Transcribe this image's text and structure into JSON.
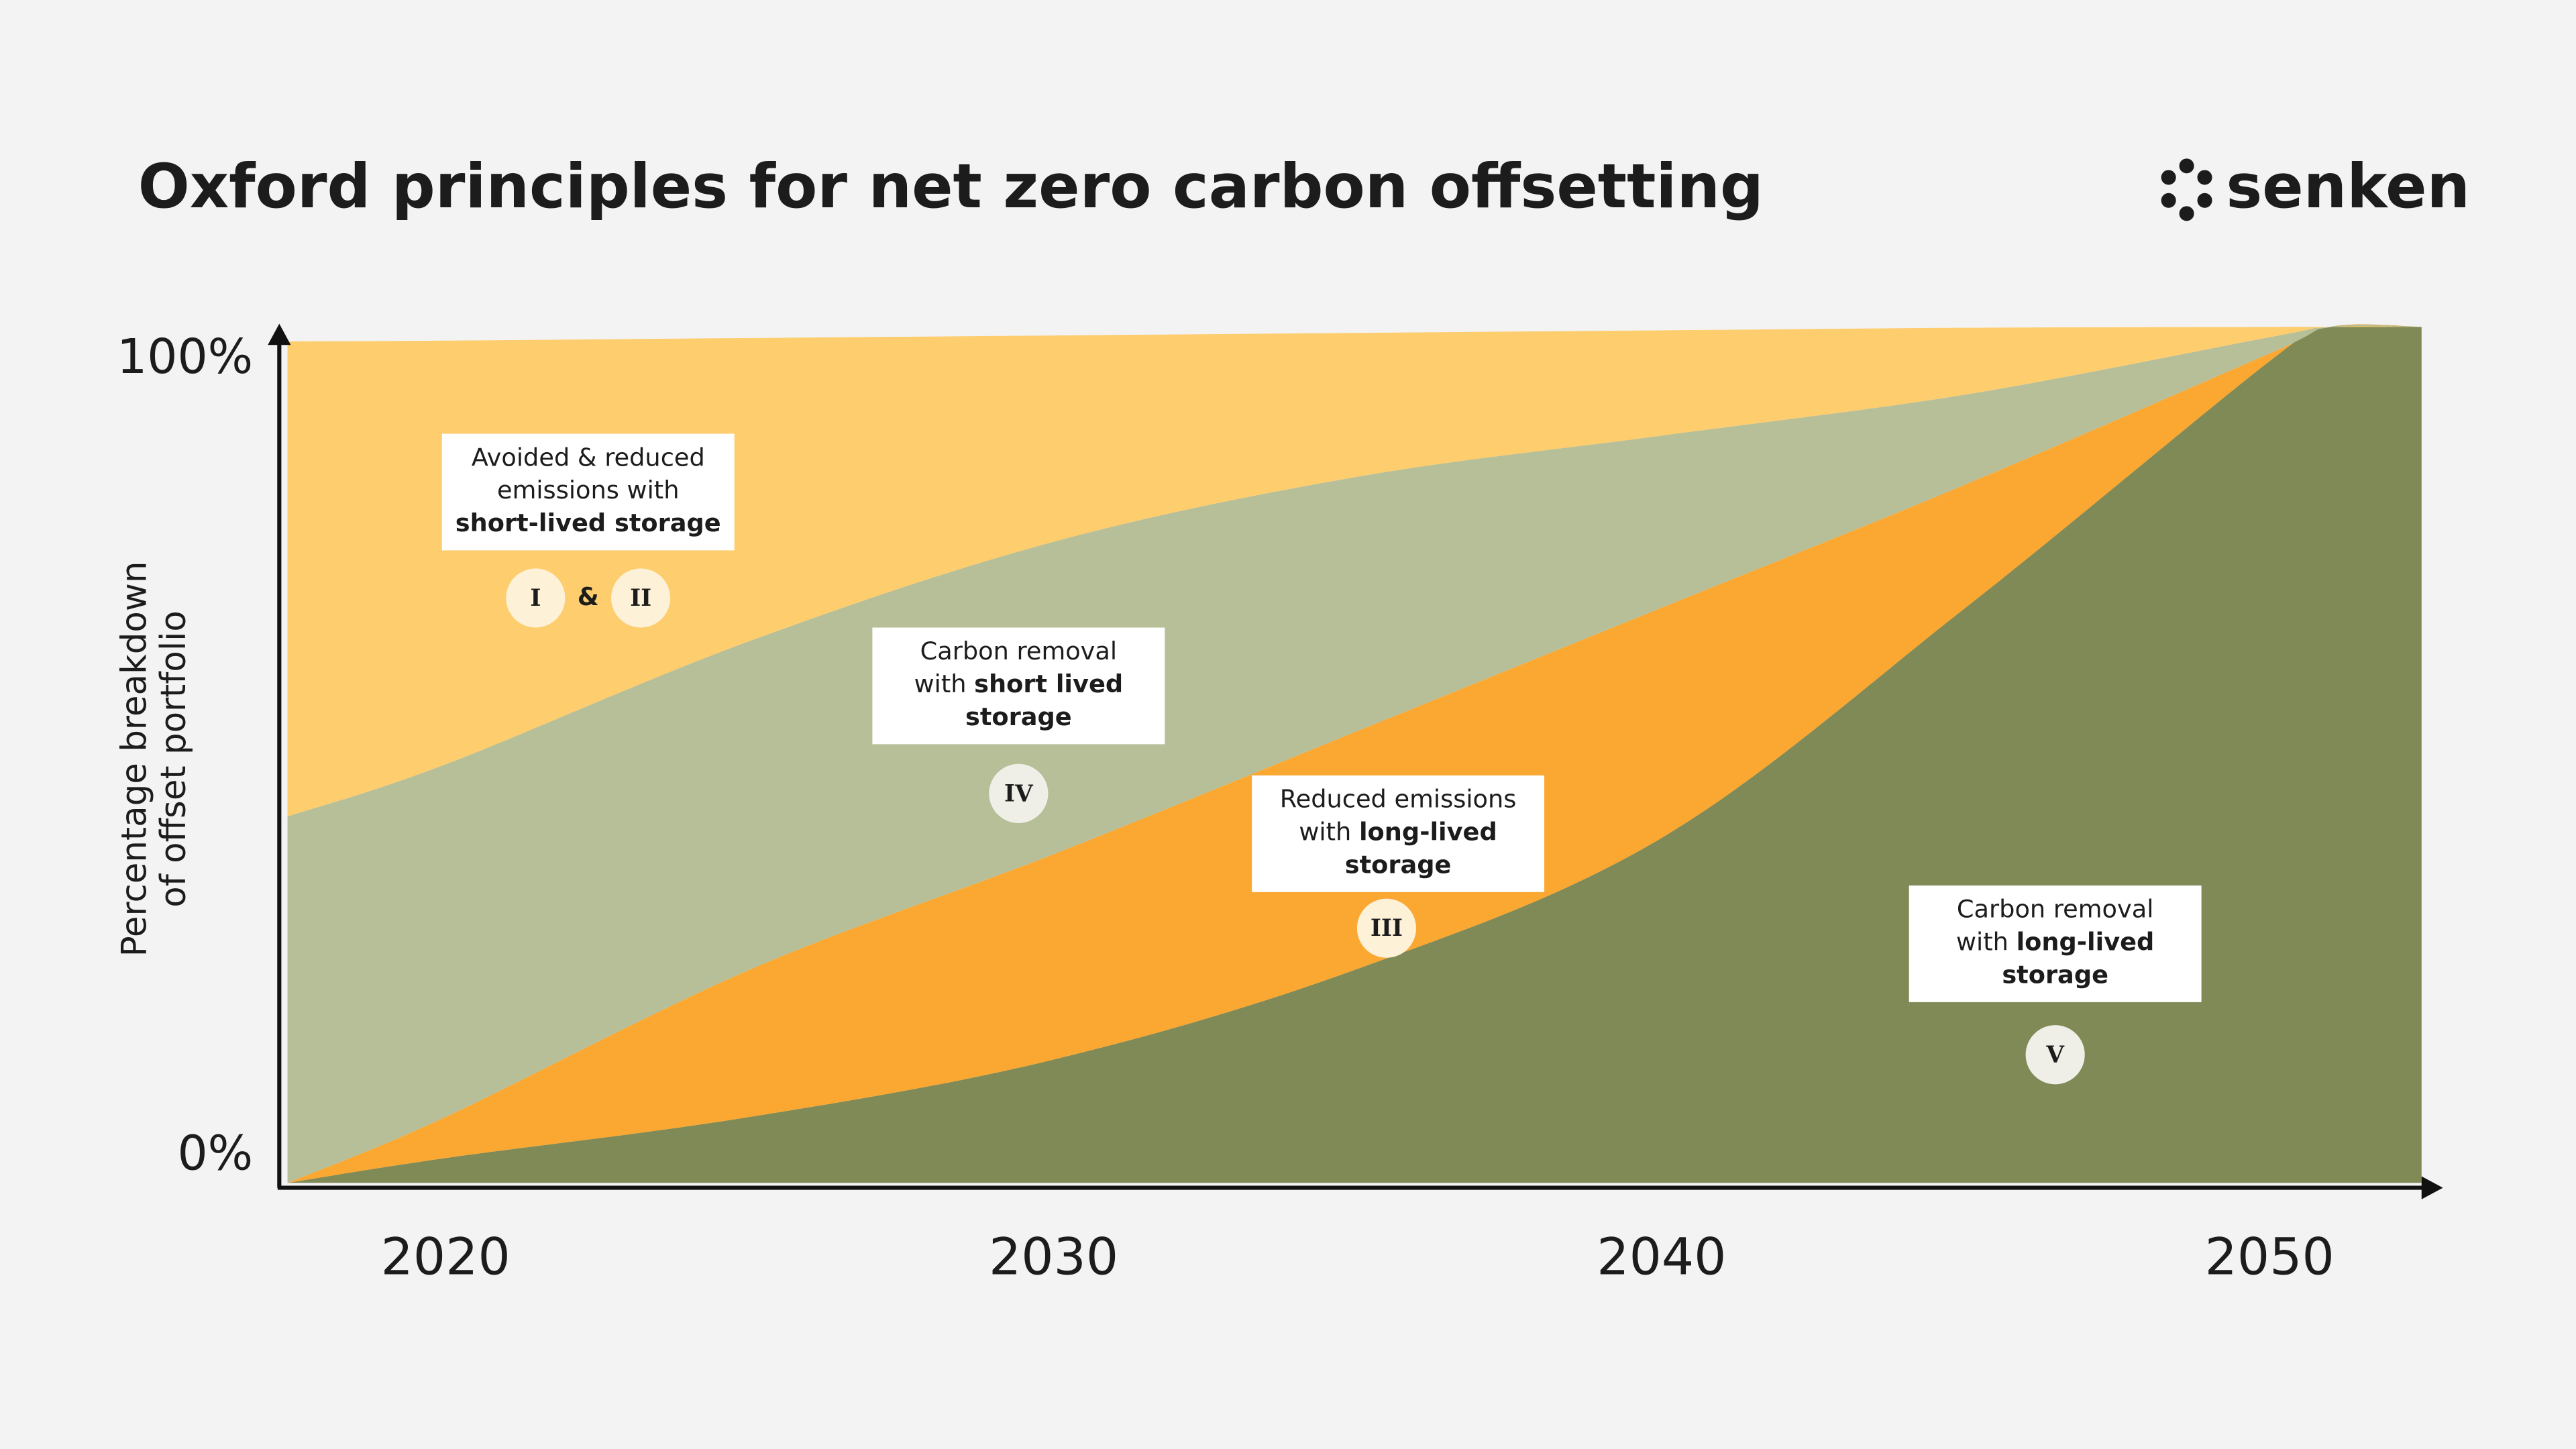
{
  "chart_data": {
    "type": "stacked_area",
    "title": "Oxford principles for net zero carbon offsetting",
    "brand": "senken",
    "y_label": [
      "Percentage breakdown",
      "of offset portfolio"
    ],
    "x": [
      2017.4,
      2020,
      2025,
      2030,
      2035,
      2040,
      2045,
      2050,
      2051,
      2052.5
    ],
    "xlim": [
      2017.4,
      2052.5
    ],
    "xticks": [
      2020,
      2030,
      2040,
      2050
    ],
    "ylim": [
      0,
      100
    ],
    "yticks": [
      {
        "value": 0,
        "label": "0%"
      },
      {
        "value": 100,
        "label": "100%"
      }
    ],
    "grid": false,
    "series": [
      {
        "name": "Carbon removal with long-lived storage",
        "color": "#7f8a57",
        "values": [
          0,
          2.9,
          7.7,
          14.4,
          25.0,
          40.3,
          67.2,
          96.0,
          100,
          100
        ]
      },
      {
        "name": "Reduced emissions with long-lived storage",
        "color": "#fba832",
        "values": [
          0,
          4.8,
          17.2,
          24.0,
          27.8,
          26.9,
          14.4,
          0.9,
          0,
          0
        ]
      },
      {
        "name": "Carbon removal with short lived storage",
        "color": "#b7bf99",
        "values": [
          42.8,
          41.2,
          38.4,
          36.5,
          29.7,
          20.1,
          10.5,
          1.9,
          0,
          0
        ]
      },
      {
        "name": "Avoided & reduced emissions with short-lived storage",
        "color": "#fdcd6e",
        "values": [
          55.5,
          49.5,
          35.4,
          24.1,
          16.8,
          12.3,
          7.8,
          1.2,
          0,
          0
        ]
      }
    ],
    "annotations": [
      {
        "lines": [
          [
            {
              "text": "Avoided & reduced"
            }
          ],
          [
            {
              "text": "emissions with"
            }
          ],
          [
            {
              "text": "short-lived storage",
              "bold": true
            }
          ]
        ],
        "badges": [
          "I",
          "II"
        ],
        "joiner": "&"
      },
      {
        "lines": [
          [
            {
              "text": "Carbon removal"
            }
          ],
          [
            {
              "text": "with "
            },
            {
              "text": "short lived",
              "bold": true
            }
          ],
          [
            {
              "text": "storage",
              "bold": true
            }
          ]
        ],
        "badges": [
          "IV"
        ]
      },
      {
        "lines": [
          [
            {
              "text": "Reduced emissions"
            }
          ],
          [
            {
              "text": "with "
            },
            {
              "text": "long-lived",
              "bold": true
            }
          ],
          [
            {
              "text": "storage",
              "bold": true
            }
          ]
        ],
        "badges": [
          "III"
        ]
      },
      {
        "lines": [
          [
            {
              "text": "Carbon removal"
            }
          ],
          [
            {
              "text": "with "
            },
            {
              "text": "long-lived",
              "bold": true
            }
          ],
          [
            {
              "text": "storage",
              "bold": true
            }
          ]
        ],
        "badges": [
          "V"
        ]
      }
    ]
  }
}
